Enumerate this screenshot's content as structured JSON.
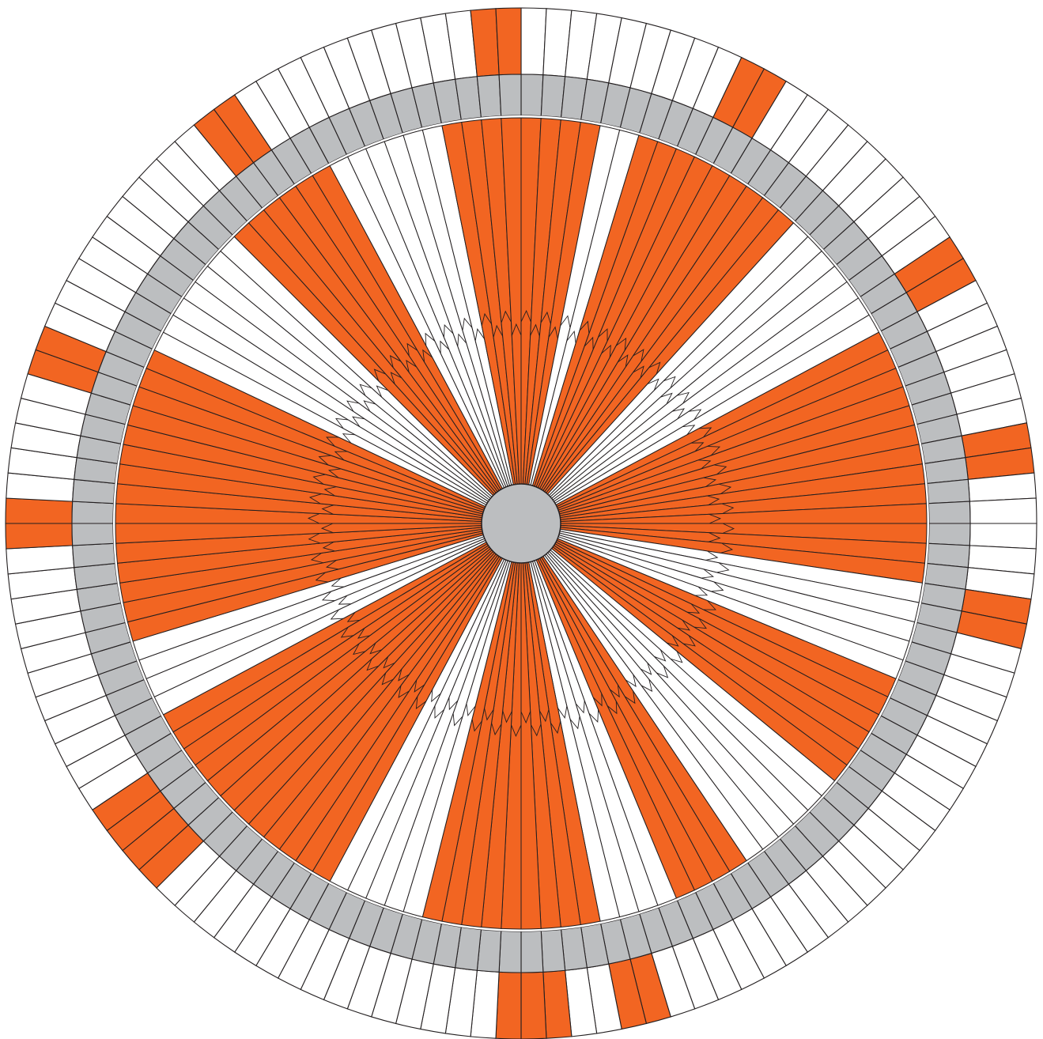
{
  "diagram": {
    "type": "radial-segmented-wheel",
    "colors": {
      "filled": "#f26522",
      "empty": "#ffffff",
      "ring": "#bcbec0",
      "stroke": "#231f20",
      "background": "#ffffff"
    },
    "spoke_count": 128,
    "outer_ring_filled": [
      9,
      10,
      20,
      21,
      28,
      29,
      35,
      36,
      58,
      59,
      62,
      63,
      64,
      80,
      81,
      82,
      83,
      95,
      96,
      102,
      103,
      114,
      115,
      126,
      127
    ],
    "inner_zone_filled": [
      0,
      1,
      2,
      3,
      6,
      7,
      8,
      9,
      10,
      11,
      12,
      13,
      14,
      22,
      23,
      24,
      25,
      26,
      27,
      28,
      29,
      30,
      31,
      32,
      33,
      34,
      40,
      41,
      42,
      43,
      44,
      45,
      52,
      53,
      54,
      55,
      60,
      61,
      62,
      63,
      64,
      65,
      66,
      67,
      68,
      74,
      75,
      76,
      77,
      78,
      79,
      80,
      81,
      82,
      83,
      84,
      85,
      90,
      91,
      92,
      93,
      94,
      95,
      96,
      97,
      98,
      99,
      100,
      101,
      102,
      103,
      104,
      112,
      113,
      114,
      115,
      116,
      117,
      124,
      125,
      126,
      127
    ]
  }
}
